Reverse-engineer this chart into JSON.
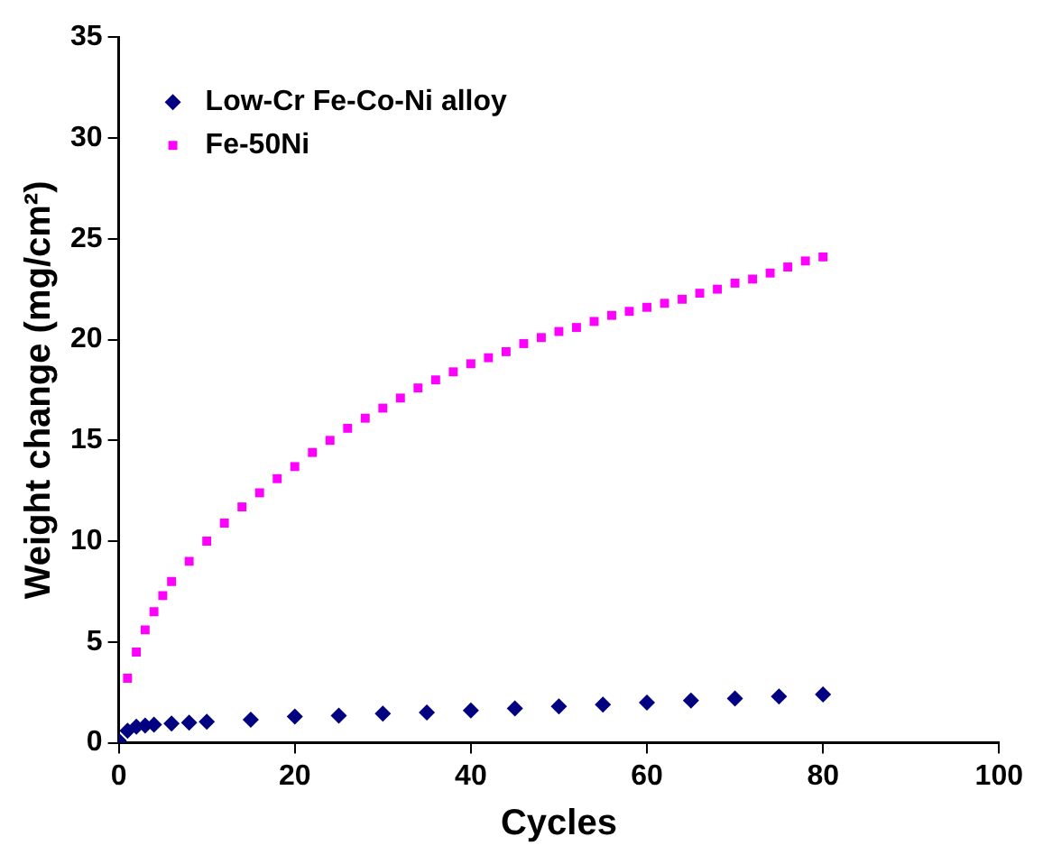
{
  "chart_data": {
    "type": "scatter",
    "xlabel": "Cycles",
    "ylabel": "Weight change (mg/cm²)",
    "xlim": [
      0,
      100
    ],
    "xticks": [
      0,
      20,
      40,
      60,
      80,
      100
    ],
    "ylim": [
      0,
      35
    ],
    "yticks": [
      0,
      5,
      10,
      15,
      20,
      25,
      30,
      35
    ],
    "grid": false,
    "legend": "top left",
    "series": [
      {
        "name": "Low-Cr Fe-Co-Ni alloy",
        "color": "#000080",
        "marker": "diamond",
        "x": [
          0,
          1,
          2,
          3,
          4,
          6,
          8,
          10,
          15,
          20,
          25,
          30,
          35,
          40,
          45,
          50,
          55,
          60,
          65,
          70,
          75,
          80
        ],
        "values": [
          0.1,
          0.6,
          0.8,
          0.85,
          0.9,
          0.95,
          1.0,
          1.05,
          1.15,
          1.3,
          1.35,
          1.45,
          1.5,
          1.6,
          1.7,
          1.8,
          1.9,
          2.0,
          2.1,
          2.2,
          2.3,
          2.4
        ]
      },
      {
        "name": "Fe-50Ni",
        "color": "#ff00ff",
        "marker": "square",
        "x": [
          1,
          2,
          3,
          4,
          5,
          6,
          8,
          10,
          12,
          14,
          16,
          18,
          20,
          22,
          24,
          26,
          28,
          30,
          32,
          34,
          36,
          38,
          40,
          42,
          44,
          46,
          48,
          50,
          52,
          54,
          56,
          58,
          60,
          62,
          64,
          66,
          68,
          70,
          72,
          74,
          76,
          78,
          80
        ],
        "values": [
          3.2,
          4.5,
          5.6,
          6.5,
          7.3,
          8.0,
          9.0,
          10.0,
          10.9,
          11.7,
          12.4,
          13.1,
          13.7,
          14.4,
          15.0,
          15.6,
          16.1,
          16.6,
          17.1,
          17.6,
          18.0,
          18.4,
          18.8,
          19.1,
          19.4,
          19.8,
          20.1,
          20.4,
          20.6,
          20.9,
          21.2,
          21.4,
          21.6,
          21.8,
          22.0,
          22.3,
          22.5,
          22.8,
          23.0,
          23.3,
          23.6,
          23.9,
          24.1
        ]
      }
    ]
  }
}
